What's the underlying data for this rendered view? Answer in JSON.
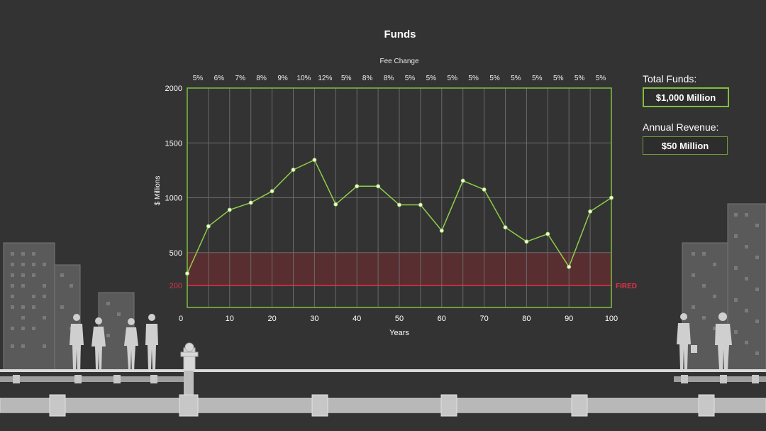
{
  "header": {
    "title": "Funds"
  },
  "stats": {
    "total_funds_label": "Total Funds:",
    "total_funds_value": "$1,000 Million",
    "annual_revenue_label": "Annual Revenue:",
    "annual_revenue_value": "$50 Million"
  },
  "colors": {
    "background": "#333333",
    "line": "#8fd04a",
    "frame": "#7fbf3f",
    "danger_band": "#5c2e31",
    "danger_line": "#e0334a",
    "grid": "#6a6a6a",
    "silhouette": "#cfcfcf"
  },
  "chart_data": {
    "type": "line",
    "title": "Funds",
    "top_axis_title": "Fee Change",
    "xlabel": "Years",
    "ylabel": "$ Millions",
    "xlim": [
      0,
      100
    ],
    "ylim": [
      0,
      2000
    ],
    "x_ticks": [
      0,
      10,
      20,
      30,
      40,
      50,
      60,
      70,
      80,
      90,
      100
    ],
    "y_ticks": [
      200,
      500,
      1000,
      1500,
      2000
    ],
    "grid": true,
    "x": [
      0,
      5,
      10,
      15,
      20,
      25,
      30,
      35,
      40,
      45,
      50,
      55,
      60,
      65,
      70,
      75,
      80,
      85,
      90,
      95,
      100
    ],
    "values": [
      310,
      740,
      890,
      955,
      1060,
      1255,
      1345,
      940,
      1105,
      1105,
      935,
      935,
      700,
      1155,
      1075,
      730,
      600,
      670,
      370,
      875,
      1000
    ],
    "fee_change": [
      "5%",
      "6%",
      "7%",
      "8%",
      "9%",
      "10%",
      "12%",
      "5%",
      "8%",
      "8%",
      "5%",
      "5%",
      "5%",
      "5%",
      "5%",
      "5%",
      "5%",
      "5%",
      "5%",
      "5%"
    ],
    "danger_zone": {
      "from": 200,
      "to": 500
    },
    "threshold": {
      "value": 200,
      "label": "FIRED"
    }
  }
}
